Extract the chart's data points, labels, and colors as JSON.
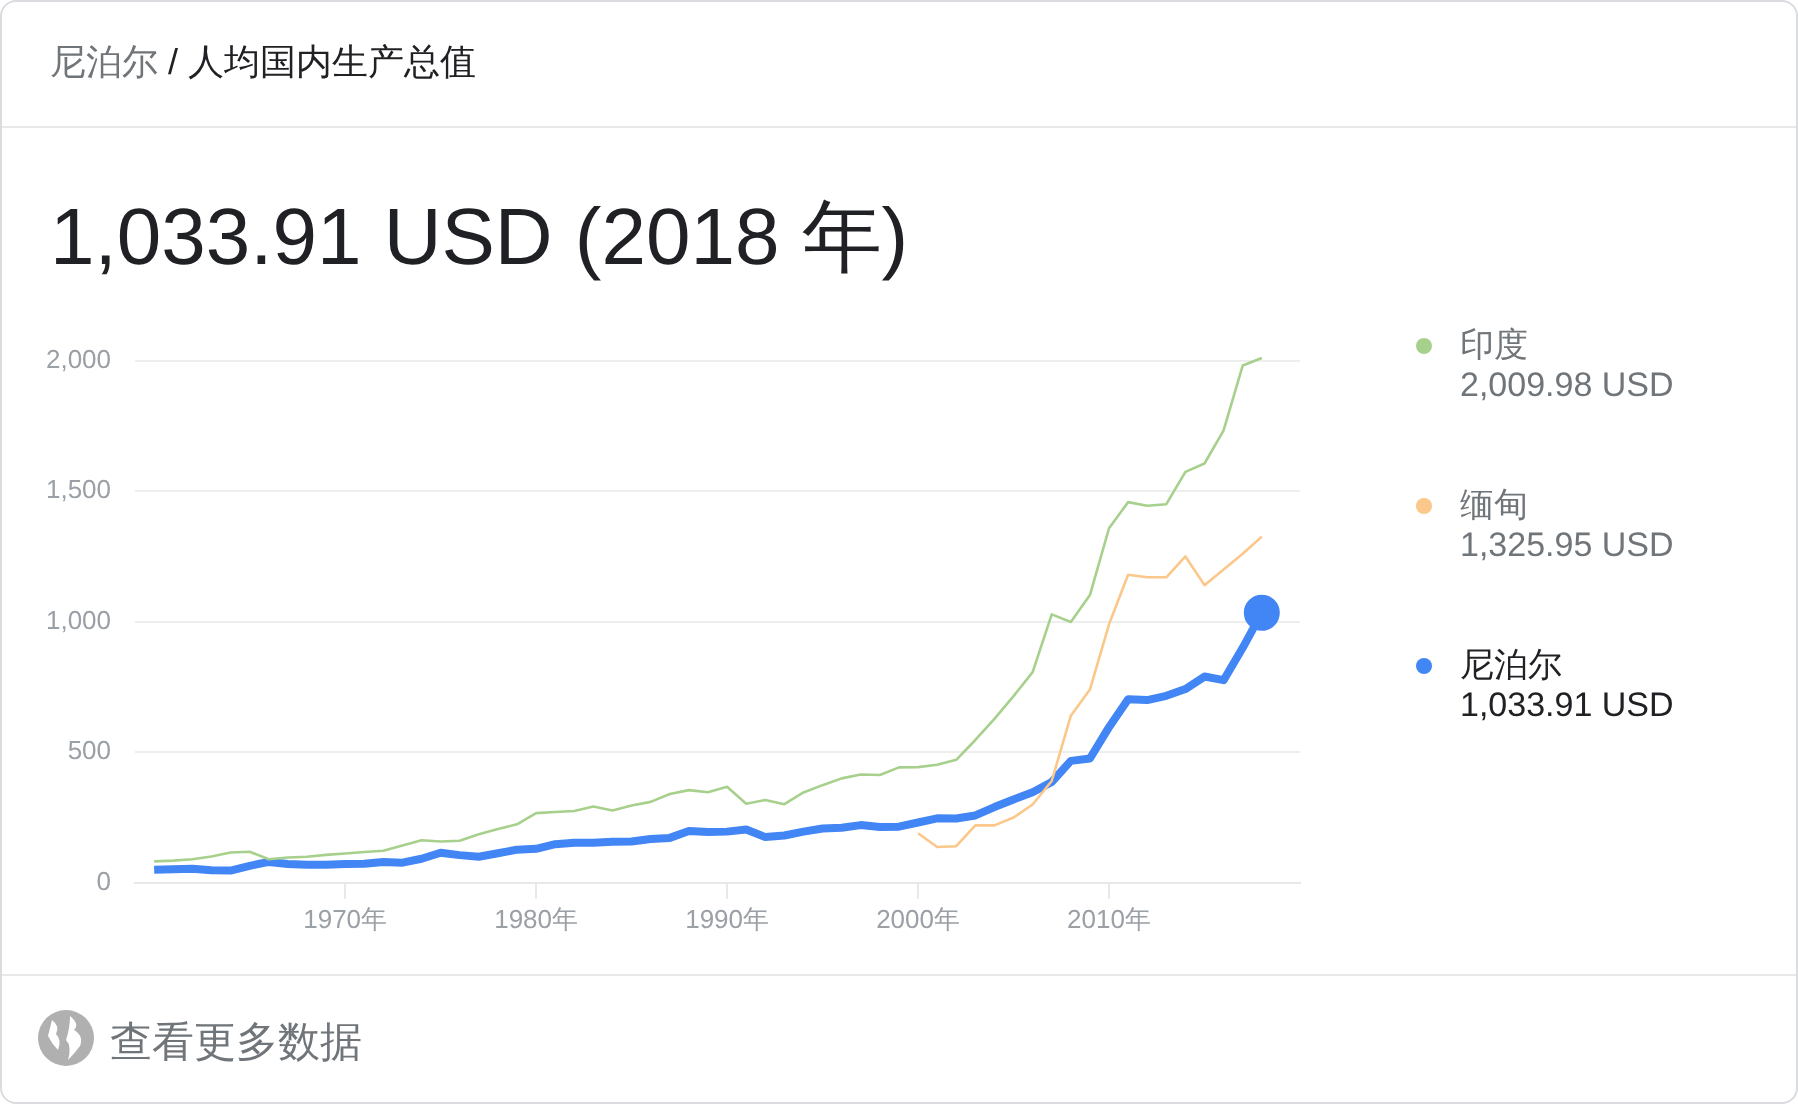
{
  "chart_data": {
    "type": "line",
    "title": "尼泊尔 / 人均国内生产总值",
    "subtitle": "1,033.91 USD (2018 年)",
    "xlim": [
      1959,
      2020
    ],
    "xticks": [
      {
        "value": 1970,
        "label": "1970年"
      },
      {
        "value": 1980,
        "label": "1980年"
      },
      {
        "value": 1990,
        "label": "1990年"
      },
      {
        "value": 2000,
        "label": "2000年"
      },
      {
        "value": 2010,
        "label": "2010年"
      }
    ],
    "ylim": [
      0,
      2010
    ],
    "yticks": [
      0,
      500,
      {
        "value": 1000,
        "label": "1,000"
      },
      {
        "value": 1500,
        "label": "1,500"
      },
      {
        "value": 2000,
        "label": "2,000"
      }
    ],
    "grid": "y",
    "legend": "right",
    "x": [
      1960,
      1961,
      1962,
      1963,
      1964,
      1965,
      1966,
      1967,
      1968,
      1969,
      1970,
      1971,
      1972,
      1973,
      1974,
      1975,
      1976,
      1977,
      1978,
      1979,
      1980,
      1981,
      1982,
      1983,
      1984,
      1985,
      1986,
      1987,
      1988,
      1989,
      1990,
      1991,
      1992,
      1993,
      1994,
      1995,
      1996,
      1997,
      1998,
      1999,
      2000,
      2001,
      2002,
      2003,
      2004,
      2005,
      2006,
      2007,
      2008,
      2009,
      2010,
      2011,
      2012,
      2013,
      2014,
      2015,
      2016,
      2017,
      2018
    ],
    "series": [
      {
        "name": "印度",
        "color": "#a8d08d",
        "values": [
          82,
          85,
          90,
          101,
          116,
          119,
          90,
          97,
          100,
          107,
          112,
          118,
          123,
          143,
          163,
          158,
          161,
          186,
          206,
          224,
          267,
          271,
          275,
          292,
          277,
          296,
          310,
          340,
          355,
          347,
          368,
          303,
          317,
          301,
          346,
          374,
          400,
          415,
          413,
          442,
          443,
          452,
          471,
          547,
          628,
          715,
          807,
          1028,
          999,
          1102,
          1358,
          1458,
          1444,
          1450,
          1574,
          1606,
          1733,
          1981,
          2009.98
        ]
      },
      {
        "name": "缅甸",
        "color": "#fbc78a",
        "values": [
          null,
          null,
          null,
          null,
          null,
          null,
          null,
          null,
          null,
          null,
          null,
          null,
          null,
          null,
          null,
          null,
          null,
          null,
          null,
          null,
          null,
          null,
          null,
          null,
          null,
          null,
          null,
          null,
          null,
          null,
          null,
          null,
          null,
          null,
          null,
          null,
          null,
          null,
          null,
          null,
          190,
          137,
          140,
          220,
          220,
          250,
          300,
          390,
          640,
          740,
          990,
          1180,
          1170,
          1170,
          1250,
          1140,
          1200,
          1260,
          1325.95
        ]
      },
      {
        "name": "尼泊尔",
        "color": "#4285f4",
        "values": [
          50,
          52,
          54,
          48,
          47,
          65,
          80,
          72,
          69,
          69,
          72,
          73,
          80,
          77,
          92,
          115,
          106,
          100,
          113,
          127,
          130,
          148,
          153,
          153,
          157,
          158,
          168,
          172,
          198,
          195,
          196,
          204,
          175,
          181,
          196,
          208,
          211,
          221,
          214,
          215,
          231,
          247,
          246,
          258,
          290,
          319,
          347,
          386,
          467,
          476,
          596,
          703,
          700,
          716,
          742,
          790,
          776,
          900,
          1033.91
        ]
      }
    ],
    "annotations": [
      "2,009.98 USD",
      "1,325.95 USD",
      "1,033.91 USD",
      "查看更多数据"
    ]
  }
}
